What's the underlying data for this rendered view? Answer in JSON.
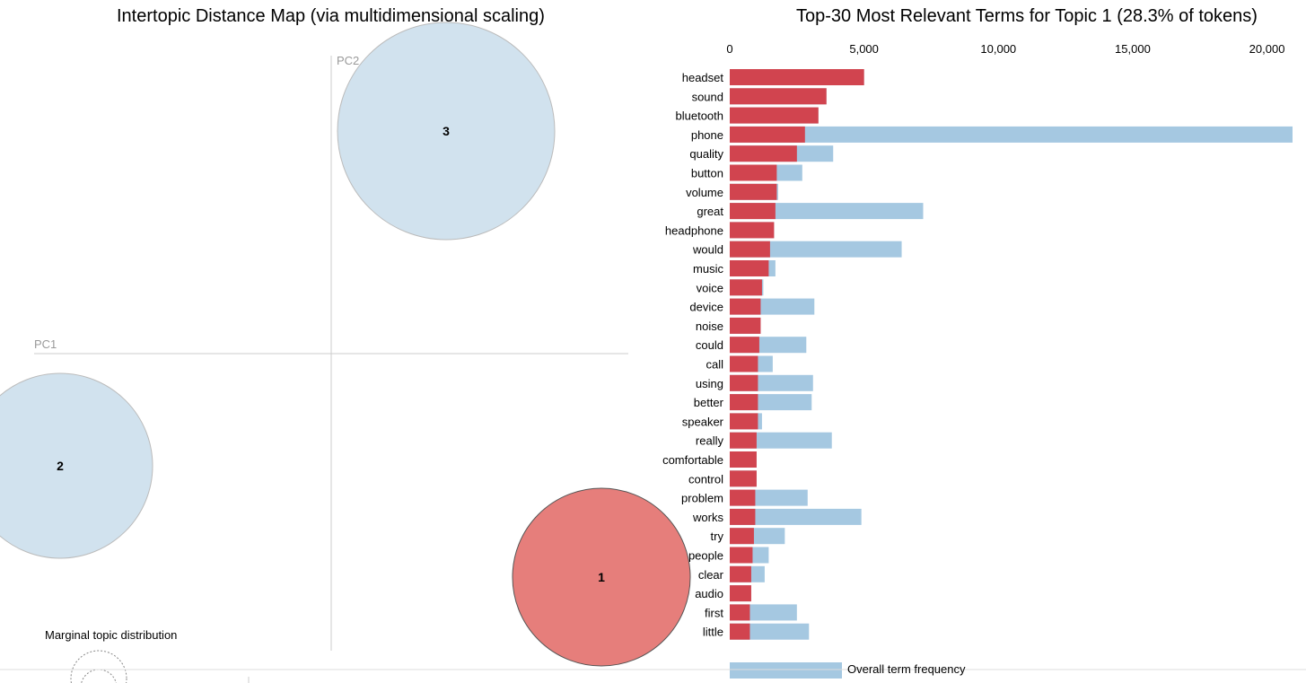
{
  "map": {
    "title": "Intertopic Distance Map (via multidimensional scaling)",
    "pc1_label": "PC1",
    "pc2_label": "PC2",
    "marginal_label": "Marginal topic distribution",
    "topics": [
      {
        "label": "1",
        "selected": true
      },
      {
        "label": "2",
        "selected": false
      },
      {
        "label": "3",
        "selected": false
      }
    ],
    "colors": {
      "selected_fill": "#e67e7b",
      "selected_stroke": "#555555",
      "unselected_fill": "#d1e2ee",
      "unselected_stroke": "#bbbbbb",
      "axis": "#cccccc"
    }
  },
  "bars": {
    "title": "Top-30 Most Relevant Terms for Topic 1 (28.3% of tokens)",
    "legend_overall": "Overall term frequency",
    "colors": {
      "topic": "#d1444f",
      "overall": "#a5c8e1"
    }
  },
  "chart_data": {
    "type": "bar",
    "orientation": "horizontal",
    "title": "Top-30 Most Relevant Terms for Topic 1 (28.3% of tokens)",
    "xlim": [
      0,
      21000
    ],
    "xticks": [
      0,
      5000,
      10000,
      15000,
      20000
    ],
    "xtick_labels": [
      "0",
      "5,000",
      "10,000",
      "15,000",
      "20,000"
    ],
    "categories": [
      "headset",
      "sound",
      "bluetooth",
      "phone",
      "quality",
      "button",
      "volume",
      "great",
      "headphone",
      "would",
      "music",
      "voice",
      "device",
      "noise",
      "could",
      "call",
      "using",
      "better",
      "speaker",
      "really",
      "comfortable",
      "control",
      "problem",
      "works",
      "try",
      "people",
      "clear",
      "audio",
      "first",
      "little"
    ],
    "series": [
      {
        "name": "Overall term frequency",
        "values": [
          5000,
          3600,
          3300,
          20950,
          3850,
          2700,
          1800,
          7200,
          1650,
          6400,
          1700,
          1250,
          3150,
          1150,
          2850,
          1600,
          3100,
          3050,
          1200,
          3800,
          1000,
          1000,
          2900,
          4900,
          2050,
          1450,
          1300,
          800,
          2500,
          2950
        ]
      },
      {
        "values": [
          5000,
          3600,
          3300,
          2800,
          2500,
          1750,
          1750,
          1700,
          1650,
          1500,
          1450,
          1200,
          1150,
          1150,
          1100,
          1050,
          1050,
          1050,
          1050,
          1000,
          1000,
          1000,
          950,
          950,
          900,
          850,
          800,
          800,
          750,
          750
        ]
      }
    ]
  }
}
